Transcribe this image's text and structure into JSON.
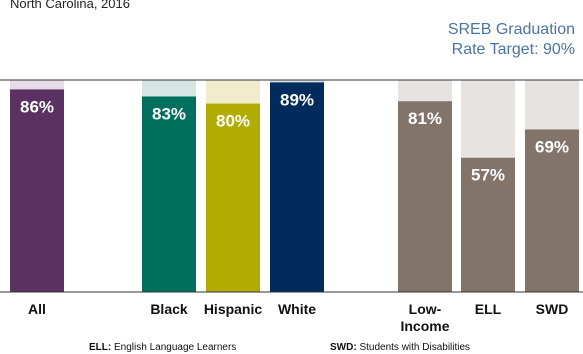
{
  "chart_data": {
    "type": "bar",
    "subtitle": "North Carolina, 2016",
    "target_label": [
      "SREB Graduation",
      "Rate Target: 90%"
    ],
    "target_value": 90,
    "ylim": [
      0,
      100
    ],
    "categories": [
      "All",
      "Black",
      "Hispanic",
      "White",
      "Low-Income",
      "ELL",
      "SWD"
    ],
    "category_label_lines": [
      [
        "All"
      ],
      [
        "Black"
      ],
      [
        "Hispanic"
      ],
      [
        "White"
      ],
      [
        "Low-",
        "Income"
      ],
      [
        "ELL"
      ],
      [
        "SWD"
      ]
    ],
    "values": [
      86,
      83,
      80,
      89,
      81,
      57,
      69
    ],
    "value_labels": [
      "86%",
      "83%",
      "80%",
      "89%",
      "81%",
      "57%",
      "69%"
    ],
    "colors": {
      "bars": [
        "#5b3162",
        "#00705e",
        "#b1ad00",
        "#002b5c",
        "#827469",
        "#827469",
        "#827469"
      ],
      "gaps": [
        "#e6dde7",
        "#d6e6e2",
        "#f1eccc",
        "#d9dde6",
        "#e7e3e1",
        "#e7e3e1",
        "#e7e3e1"
      ],
      "axis": "#333333"
    },
    "footnotes": [
      {
        "abbr": "ELL:",
        "text": " English Language Learners"
      },
      {
        "abbr": "SWD:",
        "text": " Students with Disabilities"
      }
    ]
  }
}
